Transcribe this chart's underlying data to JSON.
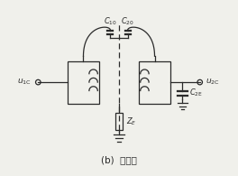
{
  "title": "(b)  有屏蔽",
  "label_u1c": "$u_{\\rm 1C}$",
  "label_u2c": "$u_{\\rm 2C}$",
  "label_C10": "$C_{10}$",
  "label_C20": "$C_{20}$",
  "label_ZE": "$Z_E$",
  "label_C2E": "$C_{\\rm 2E}$",
  "line_color": "#2a2a2a",
  "background_color": "#f0f0eb"
}
